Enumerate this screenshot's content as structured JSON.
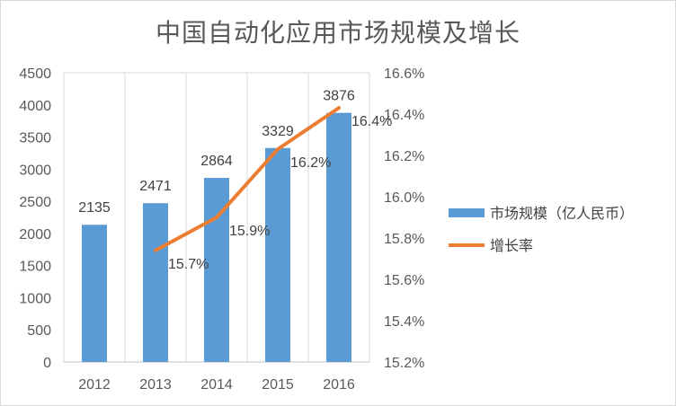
{
  "chart_data": {
    "type": "bar+line",
    "title": "中国自动化应用市场规模及增长",
    "categories": [
      "2012",
      "2013",
      "2014",
      "2015",
      "2016"
    ],
    "series": [
      {
        "name": "市场规模（亿人民币）",
        "type": "bar",
        "axis": "left",
        "color": "#5b9bd5",
        "values": [
          2135,
          2471,
          2864,
          3329,
          3876
        ],
        "labels": [
          "2135",
          "2471",
          "2864",
          "3329",
          "3876"
        ]
      },
      {
        "name": "增长率",
        "type": "line",
        "axis": "right",
        "color": "#ed7d31",
        "values": [
          null,
          15.74,
          15.9,
          16.23,
          16.43
        ],
        "labels": [
          "",
          "15.7%",
          "15.9%",
          "16.2%",
          "16.4%"
        ]
      }
    ],
    "y_left": {
      "range": [
        0,
        4500
      ],
      "ticks": [
        "0",
        "500",
        "1000",
        "1500",
        "2000",
        "2500",
        "3000",
        "3500",
        "4000",
        "4500"
      ]
    },
    "y_right": {
      "range": [
        15.2,
        16.6
      ],
      "ticks": [
        "15.2%",
        "15.4%",
        "15.6%",
        "15.8%",
        "16.0%",
        "16.2%",
        "16.4%",
        "16.6%"
      ]
    },
    "grid": "vertical",
    "legend": "right"
  }
}
